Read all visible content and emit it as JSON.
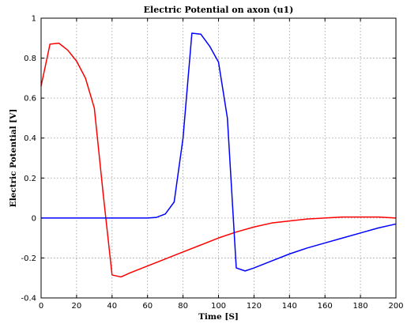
{
  "chart_data": {
    "type": "line",
    "title": "Electric Potential on axon (u1)",
    "xlabel": "Time [S]",
    "ylabel": "Electric Potential   [V]",
    "xlim": [
      0,
      200
    ],
    "ylim": [
      -0.4,
      1
    ],
    "xticks": [
      0,
      20,
      40,
      60,
      80,
      100,
      120,
      140,
      160,
      180,
      200
    ],
    "yticks": [
      -0.4,
      -0.2,
      0,
      0.2,
      0.4,
      0.6,
      0.8,
      1
    ],
    "xtick_labels": [
      "0",
      "20",
      "40",
      "60",
      "80",
      "100",
      "120",
      "140",
      "160",
      "180",
      "200"
    ],
    "ytick_labels": [
      "-0.4",
      "-0.2",
      "0",
      "0.2",
      "0.4",
      "0.6",
      "0.8",
      "1"
    ],
    "grid": true,
    "series": [
      {
        "color": "#ff0000",
        "x": [
          0,
          5,
          10,
          15,
          20,
          25,
          30,
          35,
          40,
          45,
          50,
          60,
          70,
          80,
          90,
          100,
          110,
          120,
          130,
          140,
          150,
          160,
          170,
          180,
          190,
          200
        ],
        "y": [
          0.66,
          0.87,
          0.875,
          0.84,
          0.785,
          0.7,
          0.55,
          0.12,
          -0.285,
          -0.295,
          -0.275,
          -0.24,
          -0.205,
          -0.17,
          -0.135,
          -0.1,
          -0.07,
          -0.045,
          -0.025,
          -0.015,
          -0.005,
          0.0,
          0.005,
          0.005,
          0.005,
          0.0
        ]
      },
      {
        "color": "#0000ff",
        "x": [
          0,
          10,
          20,
          30,
          40,
          50,
          60,
          65,
          70,
          75,
          80,
          85,
          90,
          95,
          100,
          105,
          110,
          115,
          120,
          130,
          140,
          150,
          160,
          170,
          180,
          190,
          200
        ],
        "y": [
          0,
          0,
          0,
          0,
          0,
          0,
          0,
          0.003,
          0.02,
          0.08,
          0.4,
          0.925,
          0.92,
          0.86,
          0.78,
          0.5,
          -0.25,
          -0.265,
          -0.25,
          -0.215,
          -0.18,
          -0.15,
          -0.125,
          -0.1,
          -0.075,
          -0.05,
          -0.03
        ]
      }
    ]
  }
}
